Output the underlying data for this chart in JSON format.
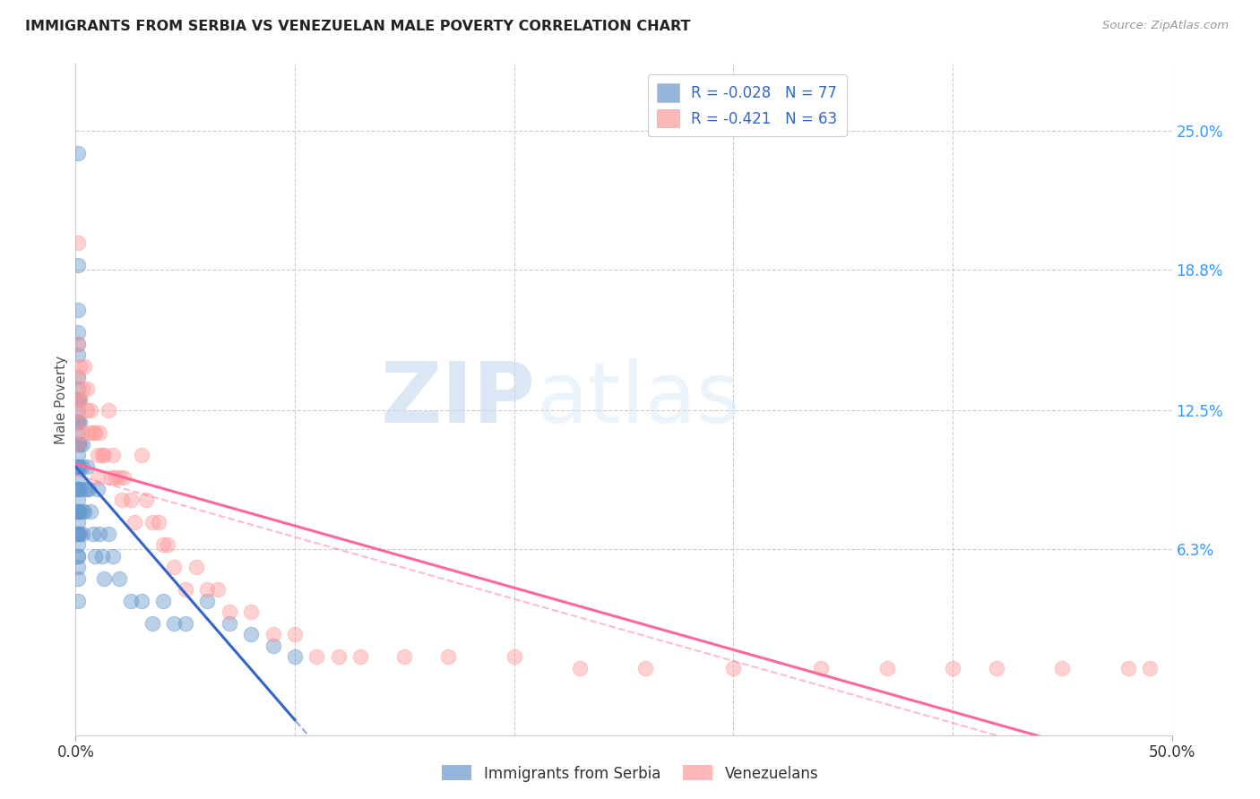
{
  "title": "IMMIGRANTS FROM SERBIA VS VENEZUELAN MALE POVERTY CORRELATION CHART",
  "source": "Source: ZipAtlas.com",
  "ylabel": "Male Poverty",
  "right_yticks": [
    "25.0%",
    "18.8%",
    "12.5%",
    "6.3%"
  ],
  "right_ytick_vals": [
    0.25,
    0.188,
    0.125,
    0.063
  ],
  "xlim": [
    0.0,
    0.5
  ],
  "ylim": [
    -0.02,
    0.28
  ],
  "serbia_color": "#6699CC",
  "venezuela_color": "#FF9999",
  "serbia_line_color": "#3366CC",
  "venezuela_line_color": "#FF6699",
  "watermark_zip": "ZIP",
  "watermark_atlas": "atlas",
  "serbia_x": [
    0.001,
    0.001,
    0.001,
    0.001,
    0.001,
    0.001,
    0.001,
    0.001,
    0.001,
    0.001,
    0.001,
    0.001,
    0.001,
    0.001,
    0.001,
    0.001,
    0.001,
    0.001,
    0.001,
    0.001,
    0.001,
    0.001,
    0.001,
    0.001,
    0.001,
    0.001,
    0.001,
    0.001,
    0.001,
    0.001,
    0.001,
    0.001,
    0.001,
    0.001,
    0.001,
    0.001,
    0.001,
    0.001,
    0.001,
    0.001,
    0.002,
    0.002,
    0.002,
    0.002,
    0.002,
    0.002,
    0.002,
    0.003,
    0.003,
    0.003,
    0.003,
    0.004,
    0.004,
    0.005,
    0.005,
    0.006,
    0.007,
    0.008,
    0.009,
    0.01,
    0.011,
    0.012,
    0.013,
    0.015,
    0.017,
    0.02,
    0.025,
    0.03,
    0.035,
    0.04,
    0.045,
    0.05,
    0.06,
    0.07,
    0.08,
    0.09,
    0.1
  ],
  "serbia_y": [
    0.24,
    0.19,
    0.17,
    0.16,
    0.155,
    0.15,
    0.14,
    0.135,
    0.13,
    0.13,
    0.125,
    0.12,
    0.12,
    0.12,
    0.115,
    0.11,
    0.11,
    0.11,
    0.105,
    0.1,
    0.1,
    0.1,
    0.095,
    0.09,
    0.09,
    0.09,
    0.085,
    0.08,
    0.08,
    0.08,
    0.075,
    0.07,
    0.07,
    0.07,
    0.065,
    0.06,
    0.06,
    0.055,
    0.05,
    0.04,
    0.13,
    0.12,
    0.11,
    0.1,
    0.09,
    0.08,
    0.07,
    0.11,
    0.1,
    0.08,
    0.07,
    0.09,
    0.08,
    0.1,
    0.09,
    0.09,
    0.08,
    0.07,
    0.06,
    0.09,
    0.07,
    0.06,
    0.05,
    0.07,
    0.06,
    0.05,
    0.04,
    0.04,
    0.03,
    0.04,
    0.03,
    0.03,
    0.04,
    0.03,
    0.025,
    0.02,
    0.015
  ],
  "venezuela_x": [
    0.001,
    0.001,
    0.001,
    0.001,
    0.001,
    0.001,
    0.001,
    0.002,
    0.002,
    0.003,
    0.003,
    0.004,
    0.005,
    0.005,
    0.006,
    0.007,
    0.008,
    0.009,
    0.01,
    0.01,
    0.011,
    0.012,
    0.013,
    0.015,
    0.016,
    0.017,
    0.018,
    0.02,
    0.021,
    0.022,
    0.025,
    0.027,
    0.03,
    0.032,
    0.035,
    0.038,
    0.04,
    0.042,
    0.045,
    0.05,
    0.055,
    0.06,
    0.065,
    0.07,
    0.08,
    0.09,
    0.1,
    0.11,
    0.12,
    0.13,
    0.15,
    0.17,
    0.2,
    0.23,
    0.26,
    0.3,
    0.34,
    0.37,
    0.4,
    0.42,
    0.45,
    0.48,
    0.49
  ],
  "venezuela_y": [
    0.2,
    0.155,
    0.14,
    0.13,
    0.125,
    0.12,
    0.11,
    0.145,
    0.13,
    0.135,
    0.115,
    0.145,
    0.135,
    0.125,
    0.115,
    0.125,
    0.115,
    0.115,
    0.105,
    0.095,
    0.115,
    0.105,
    0.105,
    0.125,
    0.095,
    0.105,
    0.095,
    0.095,
    0.085,
    0.095,
    0.085,
    0.075,
    0.105,
    0.085,
    0.075,
    0.075,
    0.065,
    0.065,
    0.055,
    0.045,
    0.055,
    0.045,
    0.045,
    0.035,
    0.035,
    0.025,
    0.025,
    0.015,
    0.015,
    0.015,
    0.015,
    0.015,
    0.015,
    0.01,
    0.01,
    0.01,
    0.01,
    0.01,
    0.01,
    0.01,
    0.01,
    0.01,
    0.01
  ]
}
